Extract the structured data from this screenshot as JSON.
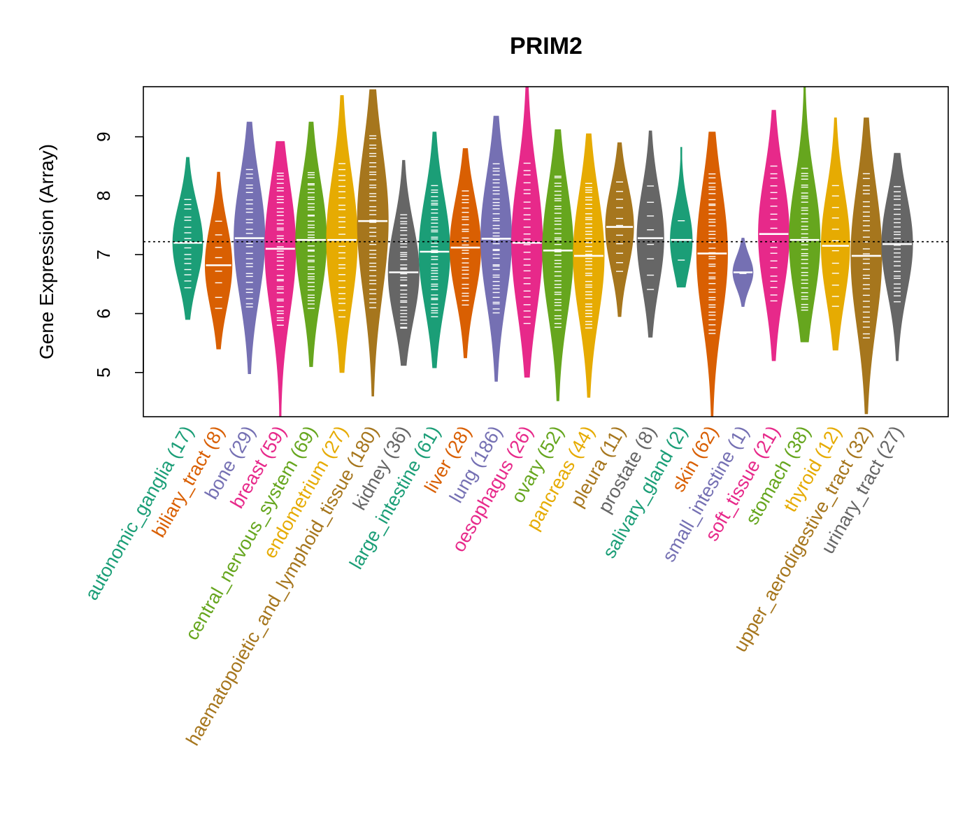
{
  "chart_data": {
    "type": "violin",
    "title": "PRIM2",
    "xlabel": "",
    "ylabel": "Gene Expression (Array)",
    "ylim": [
      4.25,
      9.85
    ],
    "yticks": [
      5,
      6,
      7,
      8,
      9
    ],
    "reference_line": 7.22,
    "grid": false,
    "legend": "none",
    "categories": [
      {
        "name": "autonomic_ganglia",
        "count": 17,
        "label": "autonomic_ganglia (17)",
        "color": "#1b9e77",
        "min": 5.9,
        "max": 8.65,
        "median": 7.2
      },
      {
        "name": "biliary_tract",
        "count": 8,
        "label": "biliary_tract (8)",
        "color": "#d95f02",
        "min": 5.4,
        "max": 8.4,
        "median": 6.82
      },
      {
        "name": "bone",
        "count": 29,
        "label": "bone (29)",
        "color": "#7570b3",
        "min": 4.98,
        "max": 9.25,
        "median": 7.28
      },
      {
        "name": "breast",
        "count": 59,
        "label": "breast (59)",
        "color": "#e7298a",
        "min": 4.25,
        "max": 8.92,
        "median": 7.1
      },
      {
        "name": "central_nervous_system",
        "count": 69,
        "label": "central_nervous_system (69)",
        "color": "#66a61e",
        "min": 5.1,
        "max": 9.25,
        "median": 7.25
      },
      {
        "name": "endometrium",
        "count": 27,
        "label": "endometrium (27)",
        "color": "#e6ab02",
        "min": 5.0,
        "max": 9.7,
        "median": 7.25
      },
      {
        "name": "haematopoietic_and_lymphoid_tissue",
        "count": 180,
        "label": "haematopoietic_and_lymphoid_tissue (180)",
        "color": "#a6761d",
        "min": 4.6,
        "max": 9.8,
        "median": 7.57
      },
      {
        "name": "kidney",
        "count": 36,
        "label": "kidney (36)",
        "color": "#666666",
        "min": 5.12,
        "max": 8.6,
        "median": 6.7
      },
      {
        "name": "large_intestine",
        "count": 61,
        "label": "large_intestine (61)",
        "color": "#1b9e77",
        "min": 5.08,
        "max": 9.08,
        "median": 7.05
      },
      {
        "name": "liver",
        "count": 28,
        "label": "liver (28)",
        "color": "#d95f02",
        "min": 5.25,
        "max": 8.8,
        "median": 7.12
      },
      {
        "name": "lung",
        "count": 186,
        "label": "lung (186)",
        "color": "#7570b3",
        "min": 4.85,
        "max": 9.35,
        "median": 7.27
      },
      {
        "name": "oesophagus",
        "count": 26,
        "label": "oesophagus (26)",
        "color": "#e7298a",
        "min": 4.92,
        "max": 9.85,
        "median": 7.2
      },
      {
        "name": "ovary",
        "count": 52,
        "label": "ovary (52)",
        "color": "#66a61e",
        "min": 4.52,
        "max": 9.12,
        "median": 7.07
      },
      {
        "name": "pancreas",
        "count": 44,
        "label": "pancreas (44)",
        "color": "#e6ab02",
        "min": 4.58,
        "max": 9.05,
        "median": 6.98
      },
      {
        "name": "pleura",
        "count": 11,
        "label": "pleura (11)",
        "color": "#a6761d",
        "min": 5.95,
        "max": 8.9,
        "median": 7.47
      },
      {
        "name": "prostate",
        "count": 8,
        "label": "prostate (8)",
        "color": "#666666",
        "min": 5.6,
        "max": 9.1,
        "median": 7.28
      },
      {
        "name": "salivary_gland",
        "count": 2,
        "label": "salivary_gland (2)",
        "color": "#1b9e77",
        "min": 6.45,
        "max": 8.82,
        "median": 7.25
      },
      {
        "name": "skin",
        "count": 62,
        "label": "skin (62)",
        "color": "#d95f02",
        "min": 4.25,
        "max": 9.08,
        "median": 7.02
      },
      {
        "name": "small_intestine",
        "count": 1,
        "label": "small_intestine (1)",
        "color": "#7570b3",
        "min": 6.12,
        "max": 7.28,
        "median": 6.7
      },
      {
        "name": "soft_tissue",
        "count": 21,
        "label": "soft_tissue (21)",
        "color": "#e7298a",
        "min": 5.2,
        "max": 9.45,
        "median": 7.35
      },
      {
        "name": "stomach",
        "count": 38,
        "label": "stomach (38)",
        "color": "#66a61e",
        "min": 5.52,
        "max": 9.85,
        "median": 7.25
      },
      {
        "name": "thyroid",
        "count": 12,
        "label": "thyroid (12)",
        "color": "#e6ab02",
        "min": 5.38,
        "max": 9.32,
        "median": 7.15
      },
      {
        "name": "upper_aerodigestive_tract",
        "count": 32,
        "label": "upper_aerodigestive_tract (32)",
        "color": "#a6761d",
        "min": 4.3,
        "max": 9.32,
        "median": 6.98
      },
      {
        "name": "urinary_tract",
        "count": 27,
        "label": "urinary_tract (27)",
        "color": "#666666",
        "min": 5.2,
        "max": 8.72,
        "median": 7.18
      }
    ]
  }
}
